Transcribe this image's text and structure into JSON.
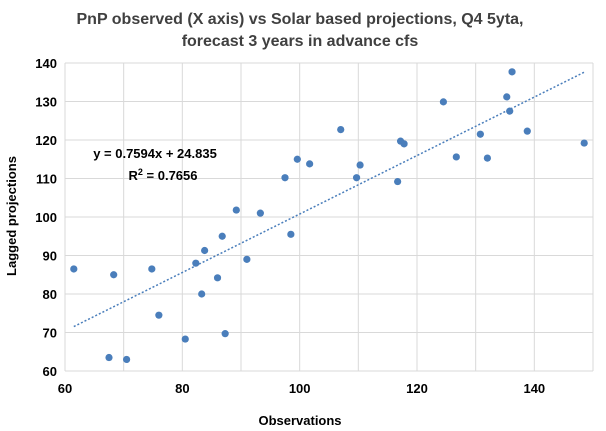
{
  "chart_data": {
    "type": "scatter",
    "title_line1": "PnP observed (X axis) vs Solar based projections, Q4 5yta,",
    "title_line2": "forecast 3 years in advance cfs",
    "xlabel": "Observations",
    "ylabel": "Lagged projections",
    "xlim": [
      60,
      150
    ],
    "ylim": [
      60,
      140
    ],
    "xticks": [
      60,
      80,
      100,
      120,
      140
    ],
    "yticks": [
      60,
      70,
      80,
      90,
      100,
      110,
      120,
      130,
      140
    ],
    "grid": true,
    "marker_color": "#4a7ebb",
    "trendline_color": "#4a7ebb",
    "trendline": {
      "slope": 0.7594,
      "intercept": 24.835,
      "x_range": [
        61.5,
        148.5
      ]
    },
    "equation_text": "y = 0.7594x + 24.835",
    "r2_prefix": "R",
    "r2_sup": "2",
    "r2_value": " = 0.7656",
    "points": [
      {
        "x": 61.5,
        "y": 86.5
      },
      {
        "x": 67.5,
        "y": 63.5
      },
      {
        "x": 68.3,
        "y": 85.0
      },
      {
        "x": 70.5,
        "y": 63.0
      },
      {
        "x": 74.8,
        "y": 86.5
      },
      {
        "x": 76.0,
        "y": 74.5
      },
      {
        "x": 80.5,
        "y": 68.3
      },
      {
        "x": 82.3,
        "y": 88.0
      },
      {
        "x": 83.3,
        "y": 80.0
      },
      {
        "x": 83.8,
        "y": 91.3
      },
      {
        "x": 86.0,
        "y": 84.2
      },
      {
        "x": 86.8,
        "y": 95.0
      },
      {
        "x": 87.3,
        "y": 69.7
      },
      {
        "x": 89.2,
        "y": 101.8
      },
      {
        "x": 91.0,
        "y": 89.0
      },
      {
        "x": 93.3,
        "y": 101.0
      },
      {
        "x": 97.5,
        "y": 110.2
      },
      {
        "x": 98.5,
        "y": 95.5
      },
      {
        "x": 99.6,
        "y": 115.0
      },
      {
        "x": 101.7,
        "y": 113.8
      },
      {
        "x": 107.0,
        "y": 122.7
      },
      {
        "x": 109.7,
        "y": 110.2
      },
      {
        "x": 110.3,
        "y": 113.5
      },
      {
        "x": 116.7,
        "y": 109.2
      },
      {
        "x": 117.2,
        "y": 119.7
      },
      {
        "x": 117.8,
        "y": 119.0
      },
      {
        "x": 124.5,
        "y": 129.9
      },
      {
        "x": 126.7,
        "y": 115.6
      },
      {
        "x": 130.8,
        "y": 121.5
      },
      {
        "x": 132.0,
        "y": 115.3
      },
      {
        "x": 135.3,
        "y": 131.2
      },
      {
        "x": 135.8,
        "y": 127.5
      },
      {
        "x": 136.2,
        "y": 137.7
      },
      {
        "x": 138.8,
        "y": 122.3
      },
      {
        "x": 148.5,
        "y": 119.2
      }
    ]
  }
}
